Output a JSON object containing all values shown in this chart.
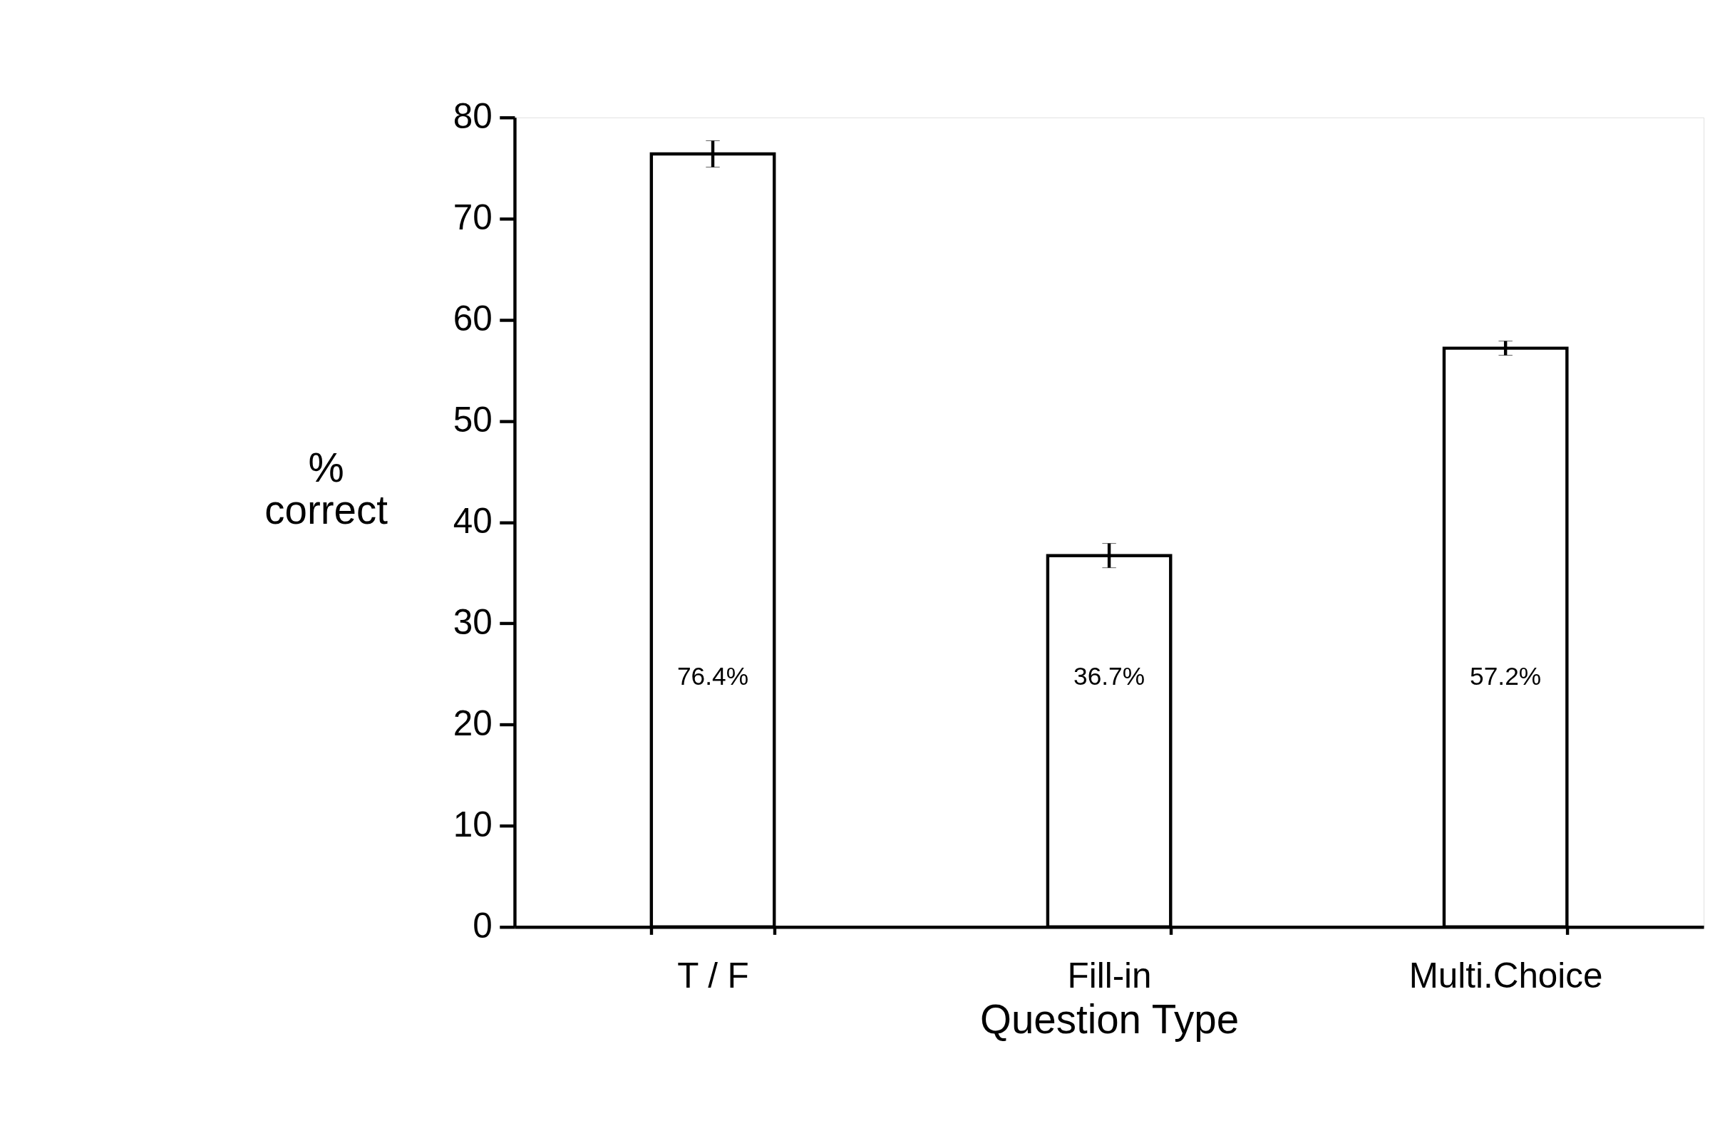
{
  "chart_data": {
    "type": "bar",
    "xlabel": "Question Type",
    "ylabel": "%\ncorrect",
    "categories": [
      "T / F",
      "Fill-in",
      "Multi.Choice"
    ],
    "values": [
      76.4,
      36.7,
      57.2
    ],
    "errors": [
      1.3,
      1.2,
      0.7
    ],
    "value_labels": [
      "76.4%",
      "36.7%",
      "57.2%"
    ],
    "color": "#ffffff",
    "ylim": [
      0,
      80
    ],
    "yticks": [
      0,
      10,
      20,
      30,
      40,
      50,
      60,
      70,
      80
    ],
    "grid": false
  }
}
